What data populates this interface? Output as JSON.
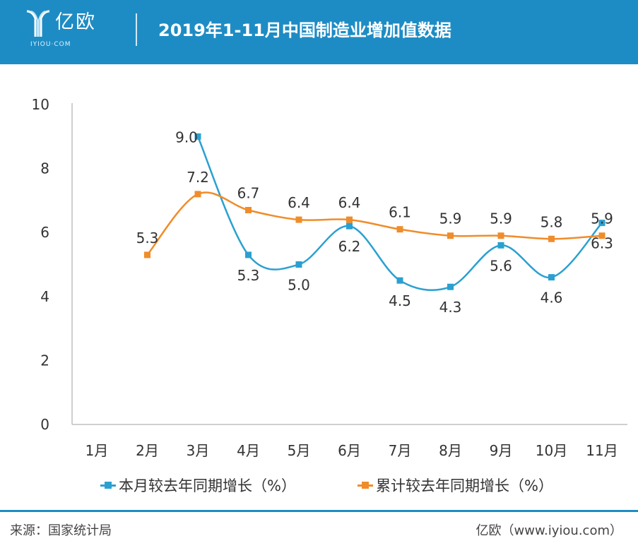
{
  "header": {
    "logo_text": "亿欧",
    "logo_sub": "IYIOU·COM",
    "title": "2019年1-11月中国制造业增加值数据",
    "background_color": "#1e8cc4"
  },
  "chart_data": {
    "type": "line",
    "title": "2019年1-11月中国制造业增加值数据",
    "xlabel": "",
    "ylabel": "",
    "categories": [
      "1月",
      "2月",
      "3月",
      "4月",
      "5月",
      "6月",
      "7月",
      "8月",
      "9月",
      "10月",
      "11月"
    ],
    "ylim": [
      0,
      10
    ],
    "yticks": [
      0,
      2,
      4,
      6,
      8,
      10
    ],
    "smooth": true,
    "grid": false,
    "legend_position": "bottom",
    "series": [
      {
        "name": "本月较去年同期增长（%）",
        "color": "#2aa0d1",
        "label_position": "below",
        "values": [
          null,
          null,
          9.0,
          5.3,
          5.0,
          6.2,
          4.5,
          4.3,
          5.6,
          4.6,
          6.3
        ],
        "labels": [
          "",
          "",
          "9.0",
          "5.3",
          "5.0",
          "6.2",
          "4.5",
          "4.3",
          "5.6",
          "4.6",
          "6.3"
        ]
      },
      {
        "name": "累计较去年同期增长（%）",
        "color": "#f08c2a",
        "label_position": "above",
        "values": [
          null,
          5.3,
          7.2,
          6.7,
          6.4,
          6.4,
          6.1,
          5.9,
          5.9,
          5.8,
          5.9
        ],
        "labels": [
          "",
          "5.3",
          "7.2",
          "6.7",
          "6.4",
          "6.4",
          "6.1",
          "5.9",
          "5.9",
          "5.8",
          "5.9"
        ]
      }
    ]
  },
  "footer": {
    "source": "来源：国家统计局",
    "site": "亿欧（www.iyiou.com）",
    "line_color": "#1e8cc4"
  }
}
